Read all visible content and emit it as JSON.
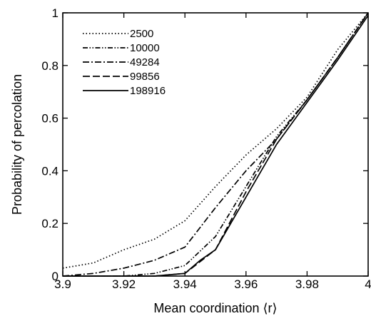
{
  "chart_data": {
    "type": "line",
    "xlabel": "Mean coordination ⟨r⟩",
    "ylabel": "Probability of percolation",
    "xlim": [
      3.9,
      4.0
    ],
    "ylim": [
      0,
      1
    ],
    "xticks": [
      3.9,
      3.92,
      3.94,
      3.96,
      3.98,
      4.0
    ],
    "xtick_labels": [
      "3.9",
      "3.92",
      "3.94",
      "3.96",
      "3.98",
      "4"
    ],
    "yticks": [
      0,
      0.2,
      0.4,
      0.6,
      0.8,
      1.0
    ],
    "ytick_labels": [
      "0",
      "0.2",
      "0.4",
      "0.6",
      "0.8",
      "1"
    ],
    "grid": false,
    "legend_position": "top-left",
    "series": [
      {
        "name": "2500",
        "dash": "dotted",
        "x": [
          3.9,
          3.91,
          3.92,
          3.93,
          3.94,
          3.95,
          3.96,
          3.97,
          3.98,
          3.99,
          4.0
        ],
        "y": [
          0.03,
          0.05,
          0.1,
          0.14,
          0.21,
          0.34,
          0.46,
          0.56,
          0.68,
          0.86,
          1.0
        ]
      },
      {
        "name": "10000",
        "dash": "dash-dot-dot",
        "x": [
          3.9,
          3.91,
          3.92,
          3.93,
          3.94,
          3.95,
          3.96,
          3.97,
          3.98,
          3.99,
          4.0
        ],
        "y": [
          0.0,
          0.0,
          0.0,
          0.01,
          0.04,
          0.15,
          0.34,
          0.53,
          0.67,
          0.83,
          1.0
        ]
      },
      {
        "name": "49284",
        "dash": "dash-dot",
        "x": [
          3.9,
          3.91,
          3.92,
          3.93,
          3.94,
          3.95,
          3.96,
          3.97,
          3.98,
          3.99,
          4.0
        ],
        "y": [
          0.0,
          0.01,
          0.03,
          0.06,
          0.11,
          0.26,
          0.4,
          0.52,
          0.67,
          0.83,
          1.0
        ]
      },
      {
        "name": "99856",
        "dash": "dashed",
        "x": [
          3.9,
          3.91,
          3.92,
          3.93,
          3.94,
          3.95,
          3.96,
          3.97,
          3.98,
          3.99,
          4.0
        ],
        "y": [
          0.0,
          0.0,
          0.0,
          0.0,
          0.01,
          0.1,
          0.32,
          0.52,
          0.67,
          0.83,
          1.0
        ]
      },
      {
        "name": "198916",
        "dash": "solid",
        "x": [
          3.9,
          3.91,
          3.92,
          3.93,
          3.94,
          3.945,
          3.95,
          3.96,
          3.97,
          3.98,
          3.99,
          4.0
        ],
        "y": [
          0.0,
          0.0,
          0.0,
          0.0,
          0.01,
          0.06,
          0.1,
          0.3,
          0.5,
          0.66,
          0.82,
          0.99
        ]
      }
    ]
  }
}
